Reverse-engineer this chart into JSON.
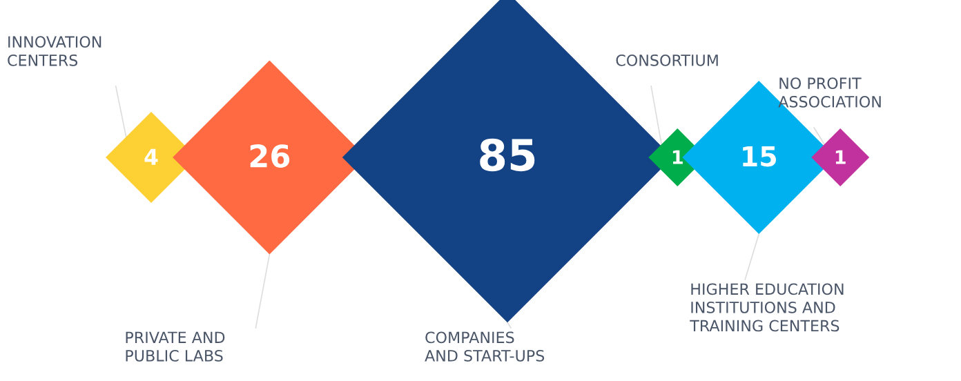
{
  "chart_data": {
    "type": "other",
    "categories": [
      "INNOVATION\nCENTERS",
      "PRIVATE AND\nPUBLIC LABS",
      "COMPANIES\nAND START-UPS",
      "CONSORTIUM",
      "HIGHER EDUCATION\nINSTITUTIONS AND\nTRAINING CENTERS",
      "NO PROFIT\nASSOCIATION"
    ],
    "values": [
      4,
      26,
      85,
      1,
      15,
      1
    ],
    "colors": [
      "#fdd034",
      "#ff6a42",
      "#134285",
      "#00ad4b",
      "#00b1f0",
      "#c2329e"
    ],
    "data_labels": true
  }
}
